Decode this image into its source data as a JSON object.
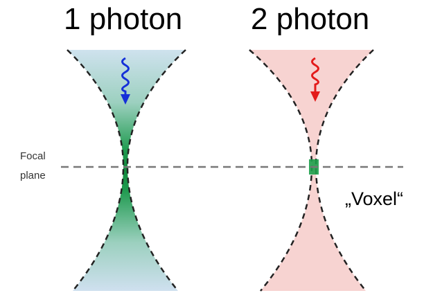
{
  "titles": {
    "one_photon": "1 photon",
    "two_photon": "2 photon"
  },
  "focal_plane": {
    "line1": "Focal",
    "line2": "plane"
  },
  "voxel_label": "„Voxel“",
  "colors": {
    "one_photon_fill_outer": "#c6dde8",
    "one_photon_fill_focus": "#18a04a",
    "one_photon_arrow": "#1530d8",
    "two_photon_fill": "#f7d3d1",
    "two_photon_focus": "#1d9e4a",
    "two_photon_arrow": "#e31b1b",
    "outline": "#222222",
    "focal_line": "#777777"
  }
}
